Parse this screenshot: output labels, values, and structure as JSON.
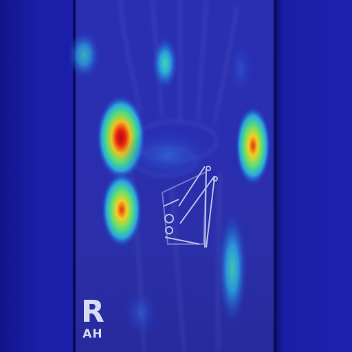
{
  "image": {
    "subject": "wrist-xray-heatmap-overlay",
    "colormap": [
      "#1a1eaa",
      "#2ab0e0",
      "#3ce8a0",
      "#f0e020",
      "#e82010",
      "#b00818"
    ]
  },
  "side_marker": {
    "letter": "R",
    "subtext": "AH"
  }
}
